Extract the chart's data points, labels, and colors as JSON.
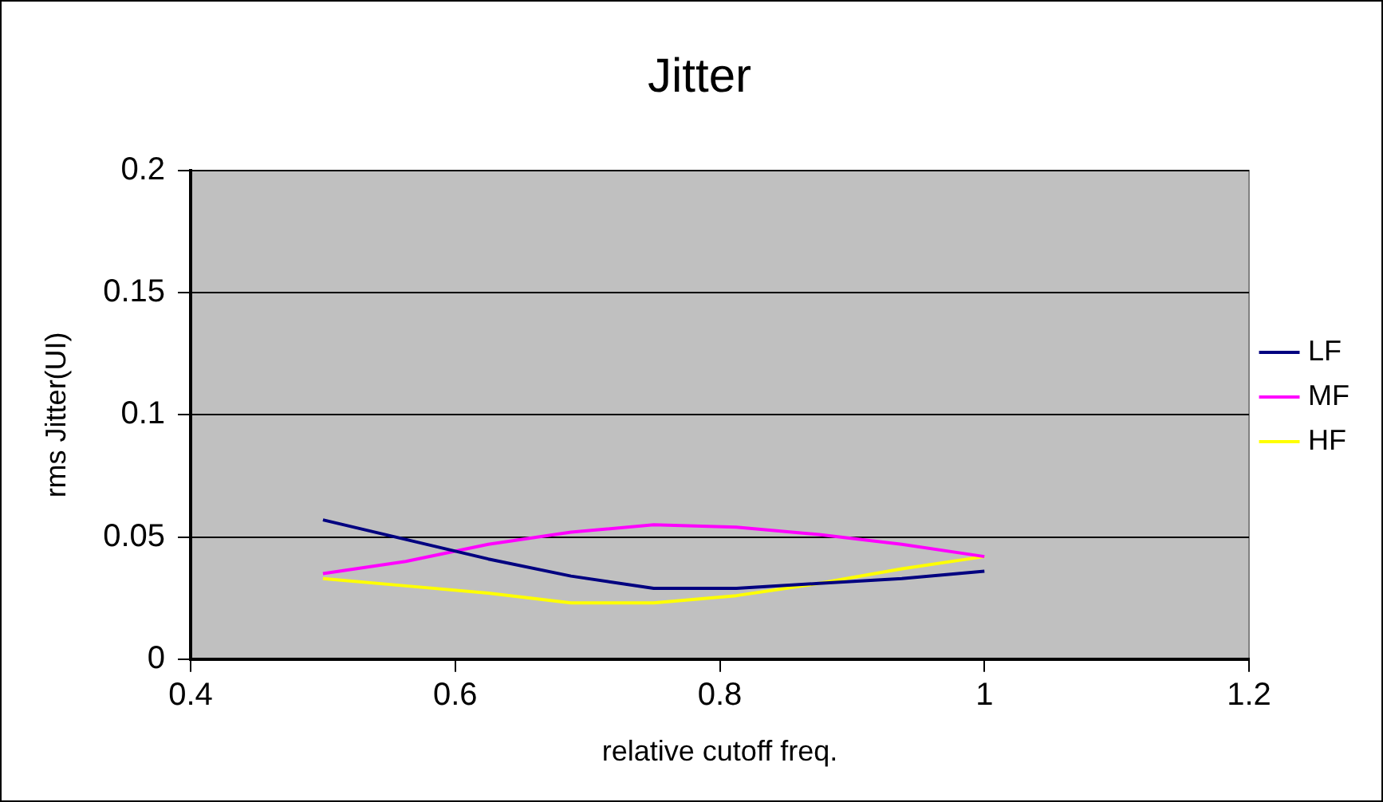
{
  "chart_data": {
    "type": "line",
    "title": "Jitter",
    "xlabel": "relative cutoff freq.",
    "ylabel": "rms Jitter(UI)",
    "x": [
      0.5,
      0.5625,
      0.625,
      0.6875,
      0.75,
      0.8125,
      0.875,
      0.9375,
      1
    ],
    "series": [
      {
        "name": "LF",
        "color": "#000080",
        "values": [
          0.057,
          0.049,
          0.041,
          0.034,
          0.029,
          0.029,
          0.031,
          0.033,
          0.036
        ]
      },
      {
        "name": "MF",
        "color": "#ff00ff",
        "values": [
          0.035,
          0.04,
          0.047,
          0.052,
          0.055,
          0.054,
          0.051,
          0.047,
          0.042
        ]
      },
      {
        "name": "HF",
        "color": "#ffff00",
        "values": [
          0.033,
          0.03,
          0.027,
          0.023,
          0.023,
          0.026,
          0.031,
          0.037,
          0.042
        ]
      }
    ],
    "xlim": [
      0.4,
      1.2
    ],
    "xticks": [
      0.4,
      0.6,
      0.8,
      1,
      1.2
    ],
    "ylim": [
      0,
      0.2
    ],
    "yticks": [
      0,
      0.05,
      0.1,
      0.15,
      0.2
    ],
    "grid": "y",
    "legend": "right",
    "marker": "none",
    "line_style": "solid"
  }
}
